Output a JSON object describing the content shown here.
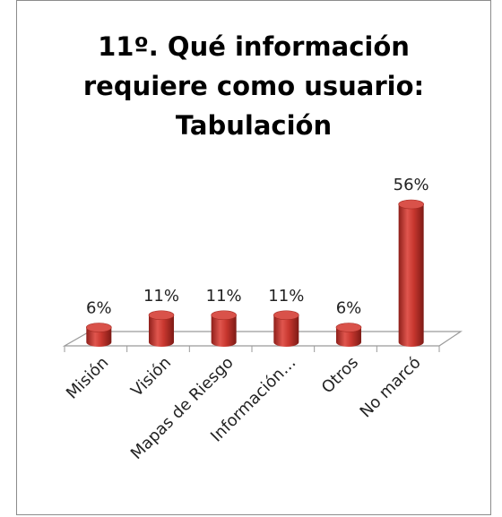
{
  "chart_data": {
    "type": "bar3d",
    "title": "11º. Qué información requiere como usuario: Tabulación",
    "categories": [
      "Misión",
      "Visión",
      "Mapas de Riesgo",
      "Información…",
      "Otros",
      "No marcó"
    ],
    "values": [
      6,
      11,
      11,
      11,
      6,
      56
    ],
    "value_labels": [
      "6%",
      "11%",
      "11%",
      "11%",
      "6%",
      "56%"
    ],
    "color": "#c0392b"
  }
}
